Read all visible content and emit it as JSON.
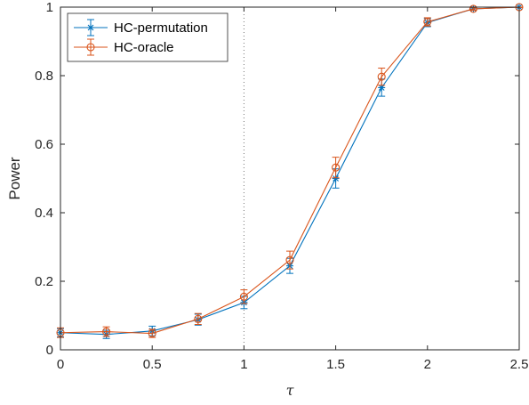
{
  "chart_data": {
    "type": "line",
    "title": "",
    "xlabel": "τ",
    "ylabel": "Power",
    "xlim": [
      0,
      2.5
    ],
    "ylim": [
      0,
      1
    ],
    "x_ticks": [
      0,
      0.5,
      1,
      1.5,
      2,
      2.5
    ],
    "x_tick_labels": [
      "0",
      "0.5",
      "1",
      "1.5",
      "2",
      "2.5"
    ],
    "y_ticks": [
      0,
      0.2,
      0.4,
      0.6,
      0.8,
      1
    ],
    "y_tick_labels": [
      "0",
      "0.2",
      "0.4",
      "0.6",
      "0.8",
      "1"
    ],
    "x": [
      0,
      0.25,
      0.5,
      0.75,
      1,
      1.25,
      1.5,
      1.75,
      2,
      2.25,
      2.5
    ],
    "reference_line": {
      "x": 1,
      "style": "dotted"
    },
    "legend_position": "top-left",
    "grid": false,
    "series": [
      {
        "name": "HC-permutation",
        "color": "#0072BD",
        "marker": "asterisk",
        "values": [
          0.05,
          0.045,
          0.055,
          0.088,
          0.138,
          0.245,
          0.5,
          0.765,
          0.955,
          0.995,
          1.0
        ],
        "error": [
          0.012,
          0.012,
          0.014,
          0.016,
          0.018,
          0.022,
          0.028,
          0.025,
          0.012,
          0.004,
          0.001
        ]
      },
      {
        "name": "HC-oracle",
        "color": "#D95319",
        "marker": "circle",
        "values": [
          0.05,
          0.053,
          0.048,
          0.09,
          0.155,
          0.262,
          0.532,
          0.797,
          0.957,
          0.995,
          1.0
        ],
        "error": [
          0.014,
          0.014,
          0.012,
          0.016,
          0.02,
          0.026,
          0.03,
          0.025,
          0.012,
          0.004,
          0.001
        ]
      }
    ]
  }
}
